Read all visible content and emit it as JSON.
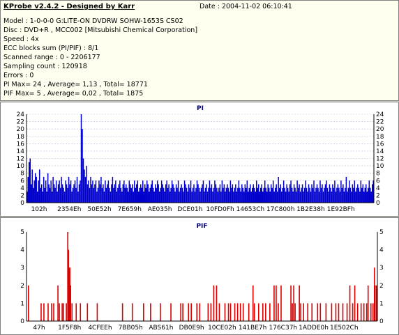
{
  "info": {
    "title": "KProbe v2.4.2 - Designed by Karr",
    "date": "Date : 2004-11-02 06:10:41",
    "lines": [
      "Model : 1-0-0-0 G:LITE-ON DVDRW SOHW-1653S CS02",
      "Disc : DVD+R , MCC002 [Mitsubishi Chemical Corporation]",
      "Speed : 4x",
      "ECC blocks sum (PI/PIF) : 8/1",
      "Scanned range : 0 - 2206177",
      "Sampling count : 120918",
      "Errors : 0",
      "PI Max= 24 , Average= 1,13 , Total= 18771",
      "PIF Max= 5 , Average= 0,02 , Total= 1875"
    ]
  },
  "chart_data": [
    {
      "type": "bar",
      "title": "PI",
      "color": "#0000cc",
      "ylim": [
        0,
        24
      ],
      "yticks": [
        0,
        2,
        4,
        6,
        8,
        10,
        12,
        14,
        16,
        18,
        20,
        22,
        24
      ],
      "xtick_labels": [
        "102h",
        "2354Eh",
        "50E52h",
        "7E659h",
        "AE035h",
        "DCE01h",
        "10FD0Fh",
        "14653Ch",
        "17C800h",
        "1B2E38h",
        "1E92BFh"
      ],
      "grid": true,
      "values": [
        3,
        7,
        11,
        12,
        5,
        9,
        4,
        6,
        8,
        7,
        3,
        6,
        9,
        4,
        5,
        3,
        7,
        4,
        6,
        3,
        8,
        5,
        4,
        6,
        3,
        7,
        5,
        4,
        6,
        3,
        5,
        6,
        4,
        7,
        5,
        4,
        3,
        6,
        5,
        4,
        7,
        5,
        6,
        3,
        4,
        5,
        6,
        4,
        7,
        3,
        5,
        6,
        24,
        20,
        12,
        9,
        7,
        10,
        5,
        6,
        4,
        7,
        5,
        6,
        4,
        5,
        6,
        3,
        4,
        6,
        5,
        7,
        4,
        5,
        3,
        6,
        4,
        5,
        6,
        4,
        3,
        5,
        7,
        4,
        5,
        6,
        3,
        4,
        5,
        6,
        4,
        3,
        5,
        6,
        4,
        5,
        4,
        3,
        6,
        5,
        4,
        5,
        3,
        6,
        4,
        5,
        6,
        3,
        4,
        5,
        4,
        6,
        3,
        5,
        4,
        6,
        5,
        3,
        4,
        5,
        6,
        4,
        3,
        5,
        4,
        6,
        5,
        3,
        4,
        6,
        5,
        4,
        3,
        5,
        6,
        4,
        5,
        3,
        4,
        6,
        5,
        4,
        3,
        5,
        4,
        6,
        3,
        4,
        5,
        4,
        3,
        6,
        5,
        4,
        3,
        5,
        4,
        6,
        3,
        4,
        5,
        3,
        4,
        6,
        5,
        4,
        3,
        4,
        5,
        6,
        3,
        4,
        5,
        3,
        4,
        6,
        4,
        5,
        3,
        4,
        6,
        5,
        4,
        3,
        4,
        5,
        3,
        6,
        4,
        5,
        3,
        4,
        5,
        4,
        3,
        6,
        4,
        5,
        3,
        4,
        5,
        3,
        4,
        6,
        4,
        3,
        5,
        4,
        3,
        5,
        4,
        6,
        3,
        4,
        5,
        3,
        4,
        5,
        4,
        3,
        6,
        4,
        5,
        3,
        4,
        5,
        3,
        4,
        6,
        4,
        3,
        5,
        4,
        3,
        5,
        4,
        6,
        3,
        4,
        5,
        3,
        7,
        4,
        5,
        3,
        4,
        6,
        4,
        3,
        5,
        4,
        3,
        5,
        6,
        4,
        3,
        5,
        4,
        3,
        6,
        4,
        5,
        3,
        4,
        5,
        3,
        4,
        6,
        4,
        3,
        5,
        4,
        3,
        5,
        4,
        6,
        3,
        4,
        5,
        4,
        3,
        6,
        4,
        5,
        3,
        4,
        5,
        6,
        4,
        3,
        5,
        4,
        3,
        5,
        4,
        6,
        3,
        4,
        5,
        4,
        3,
        6,
        4,
        5,
        3,
        4,
        7,
        3,
        4,
        6,
        4,
        3,
        5,
        4,
        6,
        3,
        4,
        5,
        4,
        3,
        6,
        4,
        5,
        3,
        4,
        5,
        3,
        4,
        6,
        4,
        3,
        5,
        6
      ]
    },
    {
      "type": "bar",
      "title": "PIF",
      "color": "#dd0000",
      "ylim": [
        0,
        5
      ],
      "yticks": [
        0,
        1,
        2,
        3,
        4,
        5
      ],
      "xtick_labels": [
        "47h",
        "1F5F8h",
        "4CFEEh",
        "7BB05h",
        "ABS61h",
        "DB0E9h",
        "10CE02h",
        "141BE7h",
        "176C37h",
        "1ADDE0h",
        "1E502Ch"
      ],
      "grid": false,
      "points": [
        [
          2,
          2
        ],
        [
          20,
          1
        ],
        [
          24,
          1
        ],
        [
          30,
          1
        ],
        [
          35,
          1
        ],
        [
          38,
          1
        ],
        [
          44,
          2
        ],
        [
          46,
          1
        ],
        [
          50,
          1
        ],
        [
          52,
          1
        ],
        [
          56,
          1
        ],
        [
          58,
          5
        ],
        [
          59,
          4
        ],
        [
          60,
          3
        ],
        [
          61,
          3
        ],
        [
          62,
          2
        ],
        [
          64,
          1
        ],
        [
          70,
          1
        ],
        [
          76,
          1
        ],
        [
          86,
          1
        ],
        [
          100,
          1
        ],
        [
          136,
          1
        ],
        [
          150,
          1
        ],
        [
          166,
          1
        ],
        [
          176,
          1
        ],
        [
          190,
          1
        ],
        [
          205,
          1
        ],
        [
          219,
          1
        ],
        [
          222,
          1
        ],
        [
          230,
          1
        ],
        [
          234,
          1
        ],
        [
          242,
          1
        ],
        [
          246,
          1
        ],
        [
          258,
          1
        ],
        [
          262,
          1
        ],
        [
          266,
          2
        ],
        [
          270,
          2
        ],
        [
          274,
          1
        ],
        [
          282,
          1
        ],
        [
          287,
          1
        ],
        [
          290,
          1
        ],
        [
          296,
          1
        ],
        [
          300,
          1
        ],
        [
          304,
          1
        ],
        [
          308,
          1
        ],
        [
          316,
          1
        ],
        [
          322,
          2
        ],
        [
          324,
          1
        ],
        [
          330,
          1
        ],
        [
          336,
          1
        ],
        [
          340,
          1
        ],
        [
          346,
          1
        ],
        [
          352,
          2
        ],
        [
          355,
          2
        ],
        [
          358,
          1
        ],
        [
          362,
          2
        ],
        [
          376,
          2
        ],
        [
          378,
          1
        ],
        [
          380,
          2
        ],
        [
          382,
          1
        ],
        [
          388,
          2
        ],
        [
          390,
          1
        ],
        [
          394,
          1
        ],
        [
          400,
          1
        ],
        [
          406,
          1
        ],
        [
          414,
          1
        ],
        [
          418,
          1
        ],
        [
          426,
          1
        ],
        [
          434,
          1
        ],
        [
          440,
          1
        ],
        [
          444,
          1
        ],
        [
          450,
          1
        ],
        [
          456,
          1
        ],
        [
          460,
          2
        ],
        [
          464,
          1
        ],
        [
          467,
          2
        ],
        [
          471,
          1
        ],
        [
          476,
          1
        ],
        [
          480,
          1
        ],
        [
          484,
          1
        ],
        [
          486,
          2
        ],
        [
          490,
          1
        ],
        [
          493,
          1
        ],
        [
          495,
          3
        ],
        [
          496,
          2
        ],
        [
          498,
          2
        ]
      ],
      "point_count": 500
    }
  ]
}
